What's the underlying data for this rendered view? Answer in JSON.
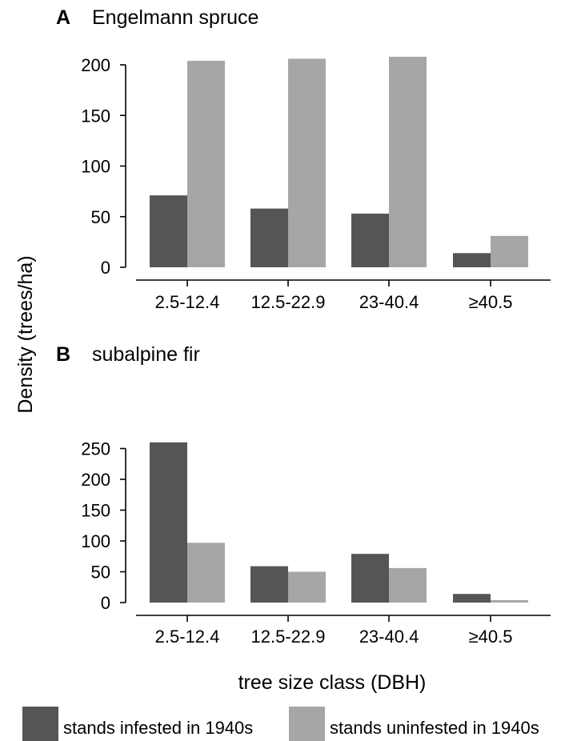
{
  "colors": {
    "infested": "#555555",
    "uninfested": "#a6a6a6",
    "axis": "#000000"
  },
  "ylabel": "Density (trees/ha)",
  "xlabel": "tree size class (DBH)",
  "legend": {
    "placement": "bottom",
    "items": [
      {
        "label": "stands infested in 1940s",
        "color": "#555555"
      },
      {
        "label": "stands uninfested in 1940s",
        "color": "#a6a6a6"
      }
    ]
  },
  "chart_data": [
    {
      "type": "bar",
      "panel": "A",
      "title": "Engelmann spruce",
      "categories": [
        "2.5-12.4",
        "12.5-22.9",
        "23-40.4",
        "≥40.5"
      ],
      "yticks": [
        0,
        50,
        100,
        150,
        200
      ],
      "ylim": [
        0,
        212
      ],
      "series": [
        {
          "name": "stands infested in 1940s",
          "values": [
            71,
            58,
            53,
            14
          ]
        },
        {
          "name": "stands uninfested in 1940s",
          "values": [
            204,
            206,
            208,
            31
          ]
        }
      ]
    },
    {
      "type": "bar",
      "panel": "B",
      "title": "subalpine fir",
      "categories": [
        "2.5-12.4",
        "12.5-22.9",
        "23-40.4",
        "≥40.5"
      ],
      "yticks": [
        0,
        50,
        100,
        150,
        200,
        250
      ],
      "ylim": [
        0,
        265
      ],
      "series": [
        {
          "name": "stands infested in 1940s",
          "values": [
            260,
            59,
            79,
            14
          ]
        },
        {
          "name": "stands uninfested in 1940s",
          "values": [
            97,
            50,
            56,
            4
          ]
        }
      ]
    }
  ]
}
